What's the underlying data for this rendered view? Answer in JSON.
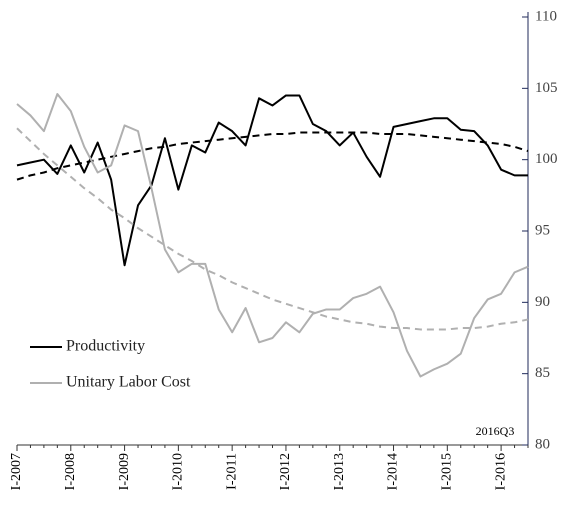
{
  "chart_data": {
    "type": "line",
    "categories": [
      "I-2007",
      null,
      null,
      null,
      "I-2008",
      null,
      null,
      null,
      "I-2009",
      null,
      null,
      null,
      "I-2010",
      null,
      null,
      null,
      "I-2011",
      null,
      null,
      null,
      "I-2012",
      null,
      null,
      null,
      "I-2013",
      null,
      null,
      null,
      "I-2014",
      null,
      null,
      null,
      "I-2015",
      null,
      null,
      null,
      "I-2016",
      null,
      null
    ],
    "series": [
      {
        "name": "Productivity",
        "color": "#000000",
        "values": [
          99.6,
          99.8,
          100.0,
          99.0,
          101.0,
          99.1,
          101.2,
          98.6,
          92.6,
          96.8,
          98.2,
          101.5,
          97.9,
          101.0,
          100.5,
          102.6,
          102.0,
          101.0,
          104.3,
          103.8,
          104.5,
          104.5,
          102.5,
          102.0,
          101.0,
          101.9,
          100.2,
          98.8,
          102.3,
          102.5,
          102.7,
          102.9,
          102.9,
          102.1,
          102.0,
          101.0,
          99.3,
          98.9,
          98.9
        ],
        "trend": [
          98.6,
          98.9,
          99.1,
          99.4,
          99.6,
          99.8,
          100.0,
          100.2,
          100.4,
          100.6,
          100.8,
          100.9,
          101.1,
          101.2,
          101.3,
          101.4,
          101.5,
          101.6,
          101.7,
          101.8,
          101.8,
          101.9,
          101.9,
          101.9,
          101.9,
          101.9,
          101.9,
          101.8,
          101.8,
          101.8,
          101.7,
          101.6,
          101.5,
          101.4,
          101.3,
          101.2,
          101.1,
          100.9,
          100.6
        ]
      },
      {
        "name": "Unitary Labor Cost",
        "color": "#b0b0b0",
        "values": [
          103.9,
          103.1,
          102.0,
          104.6,
          103.4,
          100.9,
          99.1,
          99.6,
          102.4,
          102.0,
          98.0,
          93.7,
          92.1,
          92.7,
          92.7,
          89.5,
          87.9,
          89.6,
          87.2,
          87.5,
          88.6,
          87.9,
          89.2,
          89.5,
          89.5,
          90.3,
          90.6,
          91.1,
          89.3,
          86.6,
          84.8,
          85.3,
          85.7,
          86.4,
          88.9,
          90.2,
          90.6,
          92.1,
          92.5
        ],
        "trend": [
          102.2,
          101.3,
          100.4,
          99.6,
          98.8,
          98.0,
          97.3,
          96.5,
          95.9,
          95.2,
          94.6,
          94.0,
          93.4,
          92.9,
          92.3,
          91.9,
          91.4,
          91.0,
          90.6,
          90.2,
          89.9,
          89.6,
          89.3,
          89.0,
          88.8,
          88.6,
          88.5,
          88.3,
          88.2,
          88.2,
          88.1,
          88.1,
          88.1,
          88.2,
          88.2,
          88.3,
          88.5,
          88.6,
          88.8
        ]
      }
    ],
    "ylim": [
      80,
      110
    ],
    "yticks": [
      80,
      85,
      90,
      95,
      100,
      105,
      110
    ],
    "y_axis_side": "right",
    "legend": "left",
    "annotation": "2016Q3"
  }
}
